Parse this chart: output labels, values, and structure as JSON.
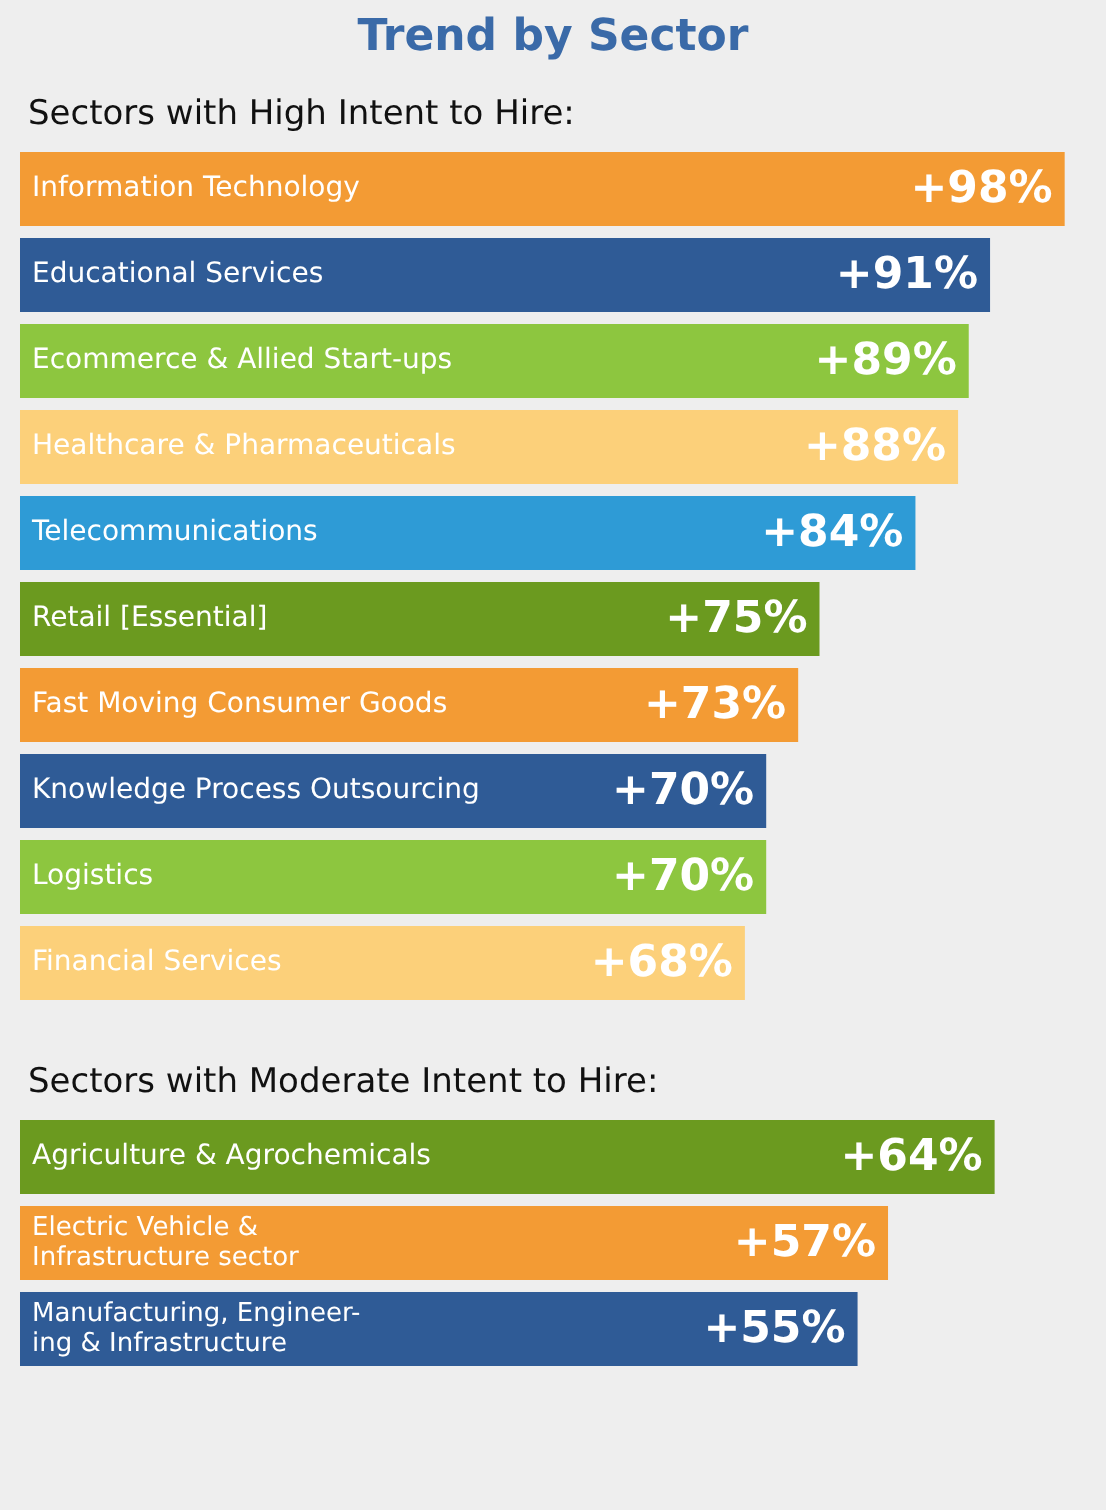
{
  "chart_data": [
    {
      "type": "bar",
      "orientation": "horizontal",
      "title": "Trend by Sector",
      "subtitle": "Sectors with High Intent to Hire:",
      "categories": [
        "Information Technology",
        "Educational Services",
        "Ecommerce & Allied Start-ups",
        "Healthcare & Pharmaceuticals",
        "Telecommunications",
        "Retail [Essential]",
        "Fast Moving Consumer Goods",
        "Knowledge Process Outsourcing",
        "Logistics",
        "Financial Services"
      ],
      "values": [
        98,
        91,
        89,
        88,
        84,
        75,
        73,
        70,
        70,
        68
      ],
      "value_labels": [
        "+98%",
        "+91%",
        "+89%",
        "+88%",
        "+84%",
        "+75%",
        "+73%",
        "+70%",
        "+70%",
        "+68%"
      ],
      "colors": [
        "#f39b34",
        "#2f5b96",
        "#8dc63f",
        "#fcd07a",
        "#2e9bd6",
        "#6b9a1f",
        "#f39b34",
        "#2f5b96",
        "#8dc63f",
        "#fcd07a"
      ]
    },
    {
      "type": "bar",
      "orientation": "horizontal",
      "subtitle": "Sectors with Moderate Intent to Hire:",
      "categories": [
        "Agriculture & Agrochemicals",
        "Electric Vehicle &\nInfrastructure sector",
        "Manufacturing, Engineer-\ning & Infrastructure"
      ],
      "values": [
        64,
        57,
        55
      ],
      "value_labels": [
        "+64%",
        "+57%",
        "+55%"
      ],
      "colors": [
        "#6b9a1f",
        "#f39b34",
        "#2f5b96"
      ]
    }
  ]
}
